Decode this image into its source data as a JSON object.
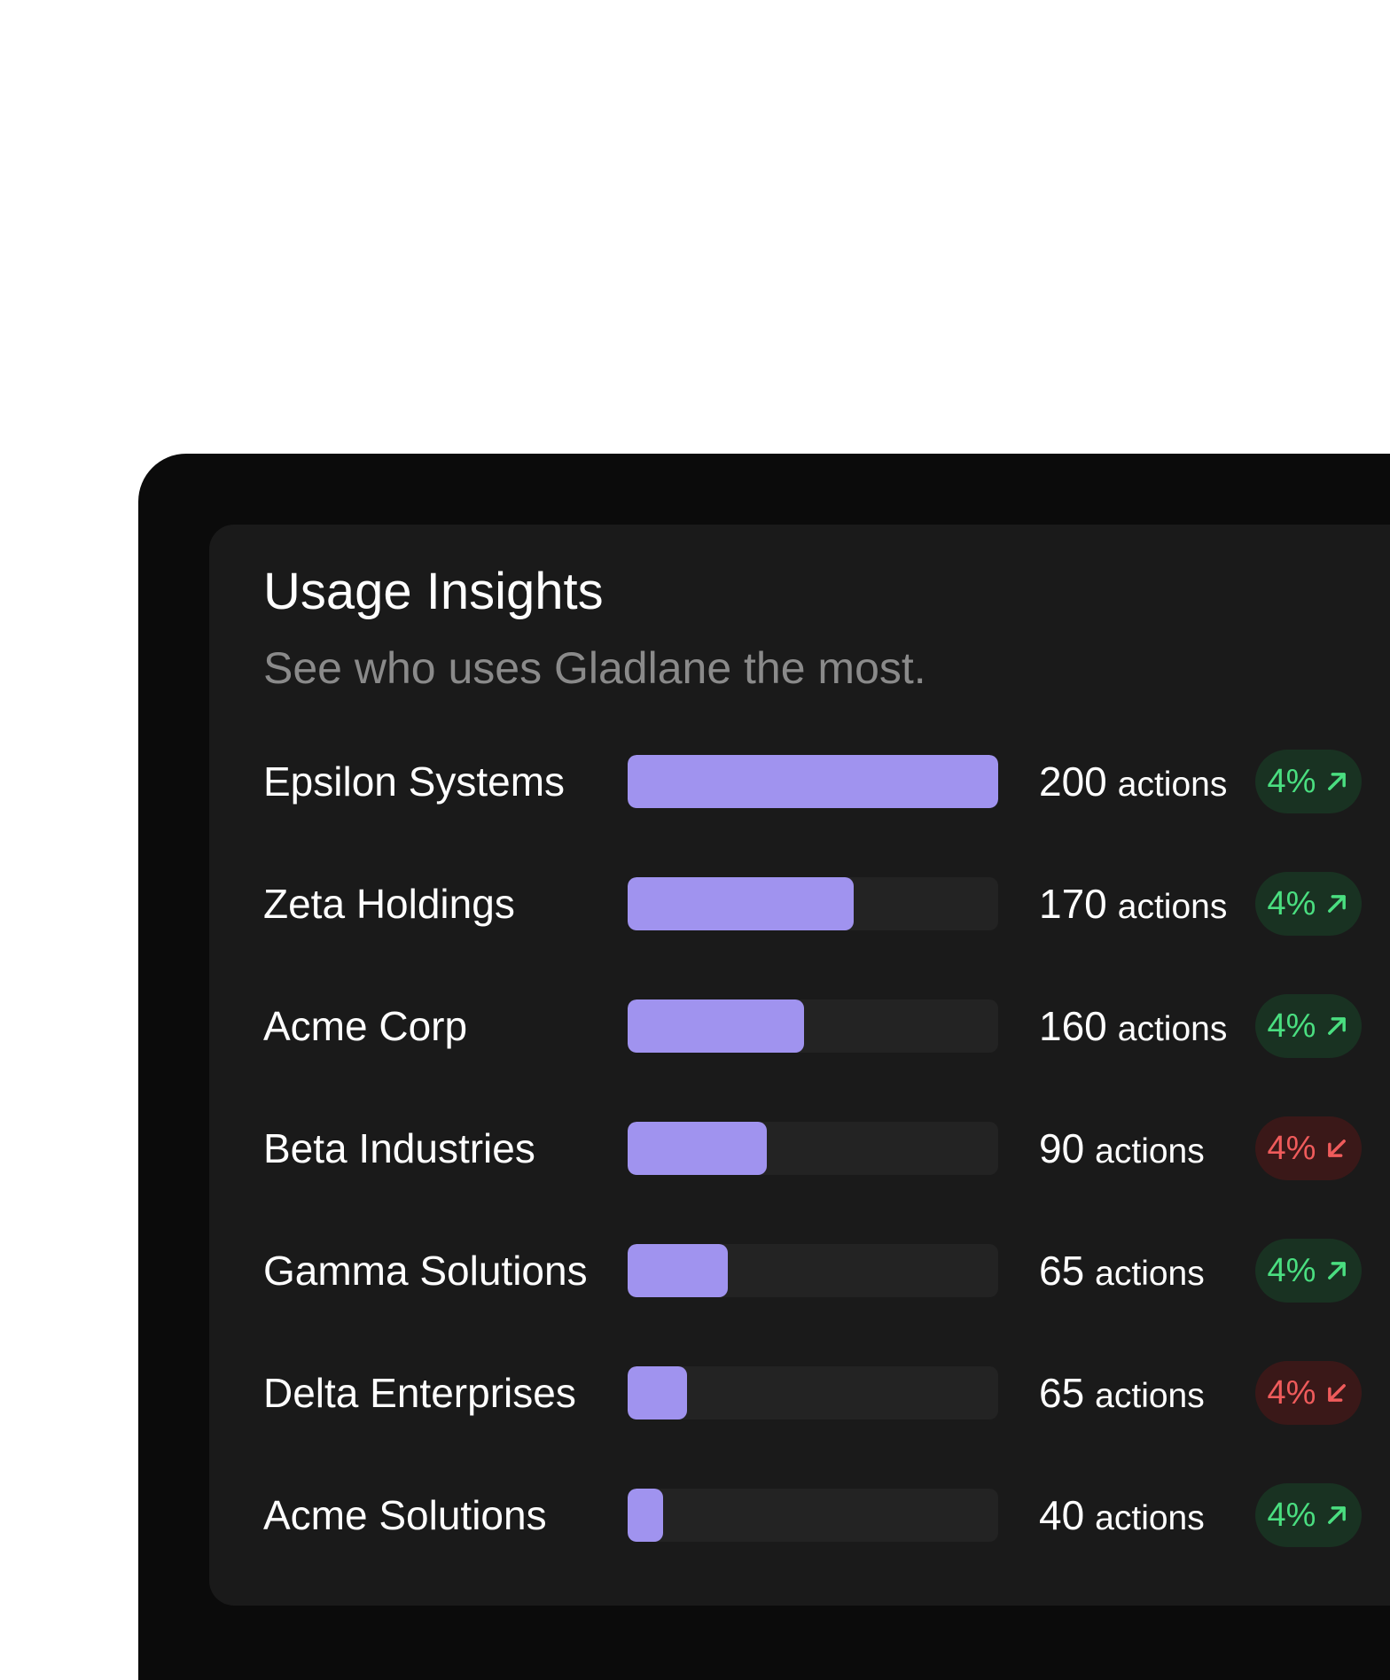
{
  "header": {
    "title": "Usage Insights",
    "subtitle": "See who uses Gladlane the most."
  },
  "unit_label": "actions",
  "colors": {
    "bar_fill": "#a093ef",
    "up": "#4ade80",
    "down": "#ef5b5b"
  },
  "chart_data": {
    "type": "bar",
    "orientation": "horizontal",
    "categories": [
      "Epsilon Systems",
      "Zeta Holdings",
      "Acme Corp",
      "Beta Industries",
      "Gamma Solutions",
      "Delta Enterprises",
      "Acme Solutions"
    ],
    "values": [
      200,
      170,
      160,
      90,
      65,
      65,
      40
    ]
  },
  "rows": [
    {
      "name": "Epsilon Systems",
      "count": "200",
      "unit": "actions",
      "fill": 1.0,
      "change": "4%",
      "trend": "up"
    },
    {
      "name": "Zeta Holdings",
      "count": "170",
      "unit": "actions",
      "fill": 0.61,
      "change": "4%",
      "trend": "up"
    },
    {
      "name": "Acme Corp",
      "count": "160",
      "unit": "actions",
      "fill": 0.475,
      "change": "4%",
      "trend": "up"
    },
    {
      "name": "Beta Industries",
      "count": "90",
      "unit": "actions",
      "fill": 0.375,
      "change": "4%",
      "trend": "down"
    },
    {
      "name": "Gamma Solutions",
      "count": "65",
      "unit": "actions",
      "fill": 0.27,
      "change": "4%",
      "trend": "up"
    },
    {
      "name": "Delta Enterprises",
      "count": "65",
      "unit": "actions",
      "fill": 0.16,
      "change": "4%",
      "trend": "down"
    },
    {
      "name": "Acme Solutions",
      "count": "40",
      "unit": "actions",
      "fill": 0.095,
      "change": "4%",
      "trend": "up"
    }
  ]
}
